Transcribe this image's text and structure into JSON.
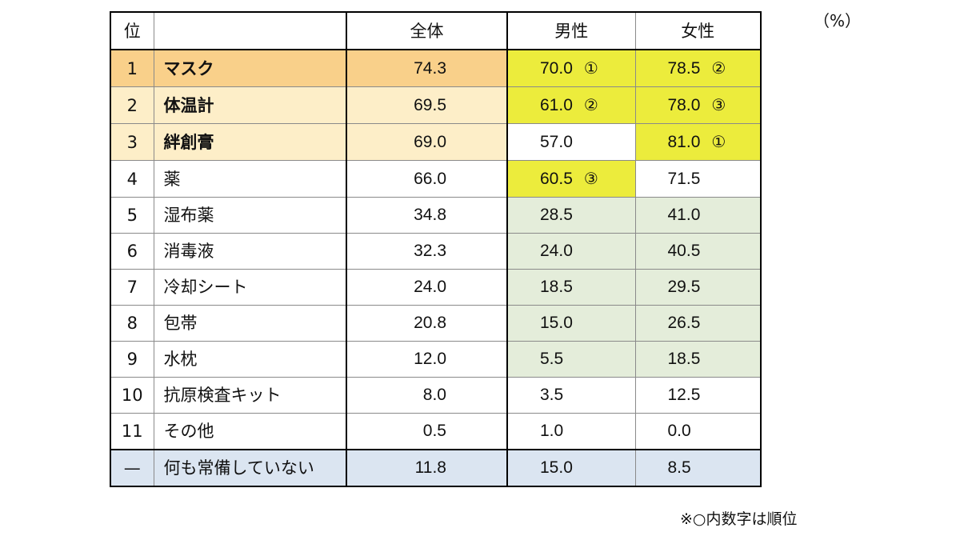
{
  "unit": "（%）",
  "note": "※○内数字は順位",
  "colors": {
    "top1": "#f9d08a",
    "top23": "#fdeec8",
    "highlight": "#ecec3c",
    "green": "#e4edda",
    "blue": "#dbe5f1",
    "white": "#ffffff"
  },
  "headers": {
    "rank": "位",
    "item": "",
    "all": "全体",
    "male": "男性",
    "female": "女性"
  },
  "rows": [
    {
      "rank": "1",
      "item": "マスク",
      "all": "74.3",
      "male": "70.0",
      "male_mark": "①",
      "female": "78.5",
      "female_mark": "②",
      "bold": true,
      "bg_left": "top1",
      "bg_male": "highlight",
      "bg_female": "highlight"
    },
    {
      "rank": "2",
      "item": "体温計",
      "all": "69.5",
      "male": "61.0",
      "male_mark": "②",
      "female": "78.0",
      "female_mark": "③",
      "bold": true,
      "bg_left": "top23",
      "bg_male": "highlight",
      "bg_female": "highlight"
    },
    {
      "rank": "3",
      "item": "絆創膏",
      "all": "69.0",
      "male": "57.0",
      "male_mark": "",
      "female": "81.0",
      "female_mark": "①",
      "bold": true,
      "bg_left": "top23",
      "bg_male": "white",
      "bg_female": "highlight"
    },
    {
      "rank": "4",
      "item": "薬",
      "all": "66.0",
      "male": "60.5",
      "male_mark": "③",
      "female": "71.5",
      "female_mark": "",
      "bold": false,
      "bg_left": "white",
      "bg_male": "highlight",
      "bg_female": "white"
    },
    {
      "rank": "5",
      "item": "湿布薬",
      "all": "34.8",
      "male": "28.5",
      "male_mark": "",
      "female": "41.0",
      "female_mark": "",
      "bold": false,
      "bg_left": "white",
      "bg_male": "green",
      "bg_female": "green"
    },
    {
      "rank": "6",
      "item": "消毒液",
      "all": "32.3",
      "male": "24.0",
      "male_mark": "",
      "female": "40.5",
      "female_mark": "",
      "bold": false,
      "bg_left": "white",
      "bg_male": "green",
      "bg_female": "green"
    },
    {
      "rank": "7",
      "item": "冷却シート",
      "all": "24.0",
      "male": "18.5",
      "male_mark": "",
      "female": "29.5",
      "female_mark": "",
      "bold": false,
      "bg_left": "white",
      "bg_male": "green",
      "bg_female": "green"
    },
    {
      "rank": "8",
      "item": "包帯",
      "all": "20.8",
      "male": "15.0",
      "male_mark": "",
      "female": "26.5",
      "female_mark": "",
      "bold": false,
      "bg_left": "white",
      "bg_male": "green",
      "bg_female": "green"
    },
    {
      "rank": "9",
      "item": "水枕",
      "all": "12.0",
      "male": "5.5",
      "male_mark": "",
      "female": "18.5",
      "female_mark": "",
      "bold": false,
      "bg_left": "white",
      "bg_male": "green",
      "bg_female": "green"
    },
    {
      "rank": "10",
      "item": "抗原検査キット",
      "all": "8.0",
      "male": "3.5",
      "male_mark": "",
      "female": "12.5",
      "female_mark": "",
      "bold": false,
      "bg_left": "white",
      "bg_male": "white",
      "bg_female": "white"
    },
    {
      "rank": "11",
      "item": "その他",
      "all": "0.5",
      "male": "1.0",
      "male_mark": "",
      "female": "0.0",
      "female_mark": "",
      "bold": false,
      "bg_left": "white",
      "bg_male": "white",
      "bg_female": "white"
    },
    {
      "rank": "—",
      "item": "何も常備していない",
      "all": "11.8",
      "male": "15.0",
      "male_mark": "",
      "female": "8.5",
      "female_mark": "",
      "bold": false,
      "bg_left": "blue",
      "bg_male": "blue",
      "bg_female": "blue"
    }
  ]
}
